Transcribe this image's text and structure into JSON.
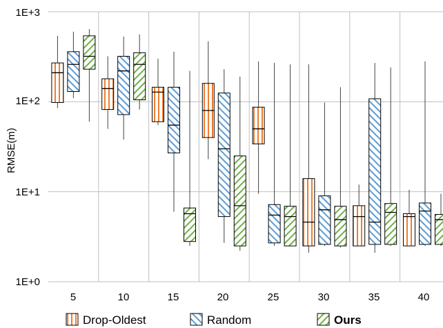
{
  "chart_data": {
    "type": "boxplot",
    "title": "",
    "xlabel": "",
    "ylabel": "RMSE(m)",
    "yscale": "log",
    "ylim": [
      1,
      1000
    ],
    "yticks": [
      "1E+0",
      "1E+1",
      "1E+2",
      "1E+3"
    ],
    "categories": [
      "5",
      "10",
      "15",
      "20",
      "25",
      "30",
      "35",
      "40"
    ],
    "grid": true,
    "legend": "bottom",
    "series": [
      {
        "name": "Drop-Oldest",
        "color": "#ED7D31",
        "hatch": "vertical",
        "boxes": [
          {
            "min": 85,
            "q1": 98,
            "median": 210,
            "q3": 270,
            "max": 540
          },
          {
            "min": 50,
            "q1": 82,
            "median": 140,
            "q3": 180,
            "max": 320
          },
          {
            "min": 55,
            "q1": 60,
            "median": 128,
            "q3": 145,
            "max": 300
          },
          {
            "min": 23,
            "q1": 40,
            "median": 80,
            "q3": 160,
            "max": 470
          },
          {
            "min": 9.5,
            "q1": 34,
            "median": 50,
            "q3": 87,
            "max": 280
          },
          {
            "min": 2.1,
            "q1": 2.5,
            "median": 4.6,
            "q3": 14,
            "max": 260
          },
          {
            "min": 2.5,
            "q1": 2.5,
            "median": 5.3,
            "q3": 7,
            "max": 12
          },
          {
            "min": 2.5,
            "q1": 2.5,
            "median": 5.3,
            "q3": 5.7,
            "max": 10.5
          }
        ]
      },
      {
        "name": "Random",
        "color": "#5B9BD5",
        "hatch": "diagonal-back",
        "boxes": [
          {
            "min": 110,
            "q1": 130,
            "median": 260,
            "q3": 360,
            "max": 600
          },
          {
            "min": 38,
            "q1": 72,
            "median": 220,
            "q3": 320,
            "max": 530
          },
          {
            "min": 6,
            "q1": 27,
            "median": 55,
            "q3": 145,
            "max": 360
          },
          {
            "min": 2.7,
            "q1": 5.3,
            "median": 30,
            "q3": 125,
            "max": 230
          },
          {
            "min": 2.5,
            "q1": 2.7,
            "median": 5.5,
            "q3": 7.2,
            "max": 270
          },
          {
            "min": 2.5,
            "q1": 2.6,
            "median": 6.3,
            "q3": 9,
            "max": 98
          },
          {
            "min": 2.1,
            "q1": 2.6,
            "median": 4.6,
            "q3": 108,
            "max": 270
          },
          {
            "min": 2.5,
            "q1": 2.6,
            "median": 6.1,
            "q3": 7.5,
            "max": 280
          }
        ]
      },
      {
        "name": "Ours",
        "color": "#70AD47",
        "hatch": "diagonal-forward",
        "boxes": [
          {
            "min": 60,
            "q1": 230,
            "median": 320,
            "q3": 540,
            "max": 640
          },
          {
            "min": 82,
            "q1": 105,
            "median": 260,
            "q3": 350,
            "max": 560
          },
          {
            "min": 2.5,
            "q1": 2.8,
            "median": 5.7,
            "q3": 6.6,
            "max": 220
          },
          {
            "min": 2.2,
            "q1": 2.5,
            "median": 7,
            "q3": 25,
            "max": 190
          },
          {
            "min": 2.5,
            "q1": 2.5,
            "median": 5.3,
            "q3": 6.9,
            "max": 260
          },
          {
            "min": 2.4,
            "q1": 2.5,
            "median": 4.9,
            "q3": 6.9,
            "max": 145
          },
          {
            "min": 2.5,
            "q1": 2.6,
            "median": 5.9,
            "q3": 7.4,
            "max": 240
          },
          {
            "min": 2.5,
            "q1": 2.6,
            "median": 4.9,
            "q3": 5.6,
            "max": 9.5
          }
        ]
      }
    ]
  }
}
